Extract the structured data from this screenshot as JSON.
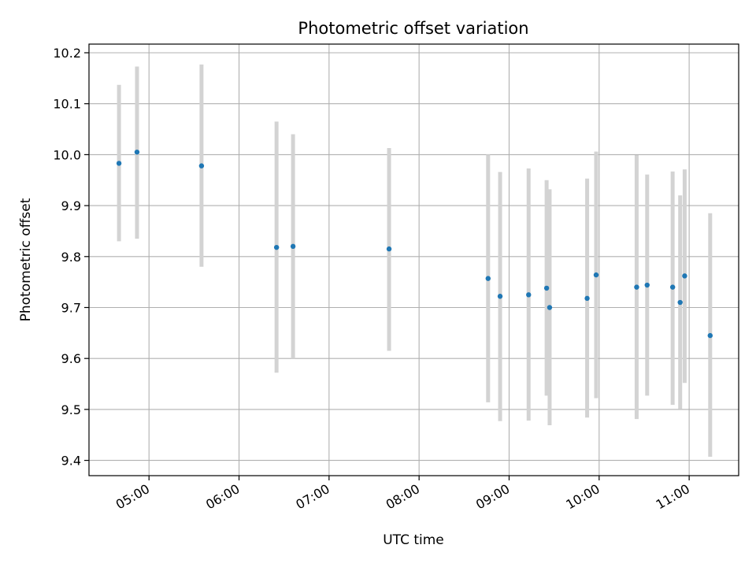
{
  "chart_data": {
    "type": "scatter",
    "title": "Photometric offset variation",
    "xlabel": "UTC time",
    "ylabel": "Photometric offset",
    "xlim": [
      "04:20",
      "11:33"
    ],
    "ylim": [
      9.37,
      10.217
    ],
    "x_ticks": [
      "05:00",
      "06:00",
      "07:00",
      "08:00",
      "09:00",
      "10:00",
      "11:00"
    ],
    "y_ticks": [
      9.4,
      9.5,
      9.6,
      9.7,
      9.8,
      9.9,
      10.0,
      10.1,
      10.2
    ],
    "y_tick_labels": [
      "9.4",
      "9.5",
      "9.6",
      "9.7",
      "9.8",
      "9.9",
      "10.0",
      "10.1",
      "10.2"
    ],
    "grid": true,
    "marker_color": "#1f77b4",
    "errorbar_color": "#d3d3d3",
    "points": [
      {
        "time": "04:40",
        "y": 9.983,
        "err_low": 9.83,
        "err_high": 10.137
      },
      {
        "time": "04:52",
        "y": 10.005,
        "err_low": 9.835,
        "err_high": 10.173
      },
      {
        "time": "05:35",
        "y": 9.978,
        "err_low": 9.78,
        "err_high": 10.177
      },
      {
        "time": "06:25",
        "y": 9.818,
        "err_low": 9.572,
        "err_high": 10.065
      },
      {
        "time": "06:36",
        "y": 9.82,
        "err_low": 9.6,
        "err_high": 10.04
      },
      {
        "time": "07:40",
        "y": 9.815,
        "err_low": 9.615,
        "err_high": 10.013
      },
      {
        "time": "08:46",
        "y": 9.757,
        "err_low": 9.514,
        "err_high": 10.0
      },
      {
        "time": "08:54",
        "y": 9.722,
        "err_low": 9.477,
        "err_high": 9.966
      },
      {
        "time": "09:13",
        "y": 9.725,
        "err_low": 9.478,
        "err_high": 9.973
      },
      {
        "time": "09:25",
        "y": 9.738,
        "err_low": 9.527,
        "err_high": 9.95
      },
      {
        "time": "09:27",
        "y": 9.7,
        "err_low": 9.469,
        "err_high": 9.932
      },
      {
        "time": "09:52",
        "y": 9.718,
        "err_low": 9.484,
        "err_high": 9.953
      },
      {
        "time": "09:58",
        "y": 9.764,
        "err_low": 9.522,
        "err_high": 10.006
      },
      {
        "time": "10:25",
        "y": 9.74,
        "err_low": 9.481,
        "err_high": 9.999
      },
      {
        "time": "10:32",
        "y": 9.744,
        "err_low": 9.527,
        "err_high": 9.961
      },
      {
        "time": "10:49",
        "y": 9.74,
        "err_low": 9.509,
        "err_high": 9.967
      },
      {
        "time": "10:54",
        "y": 9.71,
        "err_low": 9.501,
        "err_high": 9.92
      },
      {
        "time": "10:57",
        "y": 9.762,
        "err_low": 9.552,
        "err_high": 9.971
      },
      {
        "time": "11:14",
        "y": 9.645,
        "err_low": 9.407,
        "err_high": 9.885
      }
    ]
  }
}
